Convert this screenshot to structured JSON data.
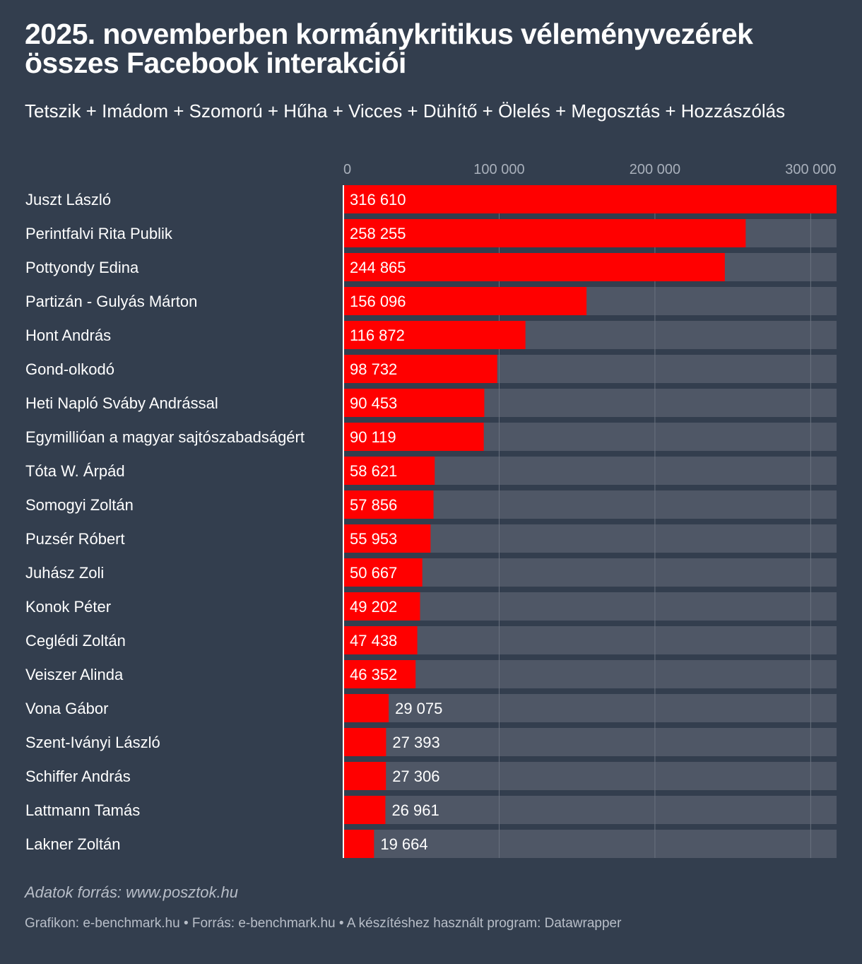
{
  "chart_data": {
    "type": "bar",
    "orientation": "horizontal",
    "title_lines": [
      "2025. novemberben kormánykritikus véleményvezérek",
      "összes Facebook interakciói"
    ],
    "subtitle": "Tetszik + Imádom + Szomorú + Hűha + Vicces + Dühítő + Ölelés + Megosztás + Hozzászólás",
    "categories": [
      "Juszt László",
      "Perintfalvi Rita Publik",
      "Pottyondy Edina",
      "Partizán - Gulyás Márton",
      "Hont András",
      "Gond-olkodó",
      "Heti Napló Sváby Andrással",
      "Egymillióan a magyar sajtószabadságért",
      "Tóta W. Árpád",
      "Somogyi Zoltán",
      "Puzsér Róbert",
      "Juhász Zoli",
      "Konok Péter",
      "Ceglédi Zoltán",
      "Veiszer Alinda",
      "Vona Gábor",
      "Szent-Iványi László",
      "Schiffer András",
      "Lattmann Tamás",
      "Lakner Zoltán"
    ],
    "values": [
      316610,
      258255,
      244865,
      156096,
      116872,
      98732,
      90453,
      90119,
      58621,
      57856,
      55953,
      50667,
      49202,
      47438,
      46352,
      29075,
      27393,
      27306,
      26961,
      19664
    ],
    "value_labels": [
      "316 610",
      "258 255",
      "244 865",
      "156 096",
      "116 872",
      "98 732",
      "90 453",
      "90 119",
      "58 621",
      "57 856",
      "55 953",
      "50 667",
      "49 202",
      "47 438",
      "46 352",
      "29 075",
      "27 393",
      "27 306",
      "26 961",
      "19 664"
    ],
    "ticks": [
      0,
      100000,
      200000,
      300000
    ],
    "tick_labels": [
      "0",
      "100 000",
      "200 000",
      "300 000"
    ],
    "xlim": [
      0,
      316610
    ],
    "grid": true,
    "colors": {
      "background": "#333e4e",
      "bar": "#ff0000",
      "track": "#4f5766",
      "grid": "#69717f",
      "tick_text": "#a9b0bb",
      "label_text": "#ffffff"
    }
  },
  "notes": "Adatok forrás: www.posztok.hu",
  "footer": "Grafikon: e-benchmark.hu • Forrás: e-benchmark.hu • A készítéshez használt program: Datawrapper"
}
